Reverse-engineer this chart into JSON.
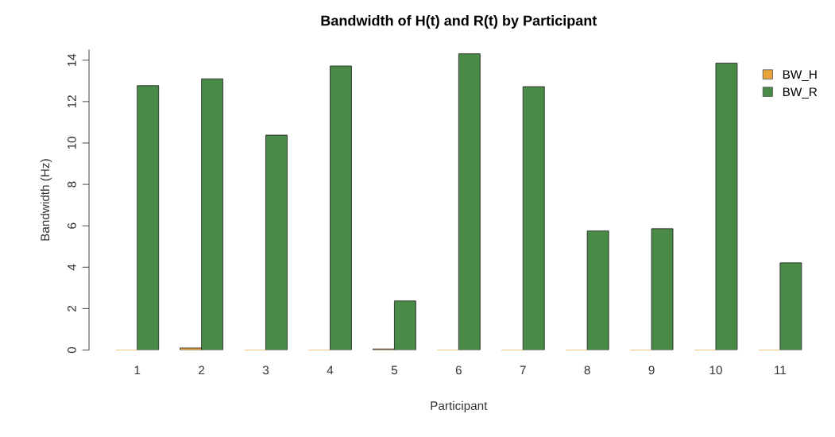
{
  "chart_data": {
    "type": "bar",
    "title": "Bandwidth of H(t) and R(t) by Participant",
    "xlabel": "Participant",
    "ylabel": "Bandwidth (Hz)",
    "categories": [
      "1",
      "2",
      "3",
      "4",
      "5",
      "6",
      "7",
      "8",
      "9",
      "10",
      "11"
    ],
    "series": [
      {
        "name": "BW_H",
        "color": "#e8a33a",
        "values": [
          0,
          0.1,
          0,
          0,
          0.05,
          0,
          0,
          0,
          0,
          0,
          0
        ]
      },
      {
        "name": "BW_R",
        "color": "#4a8a47",
        "values": [
          12.77,
          13.1,
          10.38,
          13.72,
          2.37,
          14.31,
          12.72,
          5.75,
          5.86,
          13.86,
          4.21
        ]
      }
    ],
    "ylim": [
      0,
      14.5
    ],
    "yticks": [
      0,
      2,
      4,
      6,
      8,
      10,
      12,
      14
    ],
    "grid": false,
    "legend": "top right"
  }
}
